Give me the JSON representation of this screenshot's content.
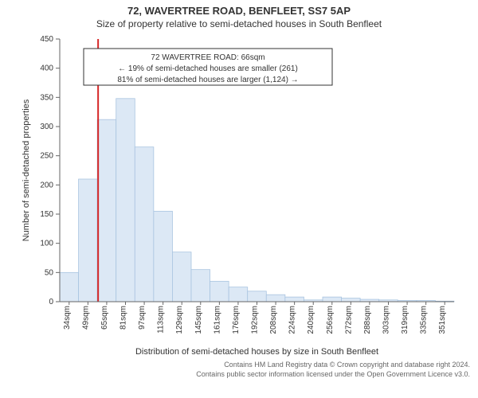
{
  "title_line1": "72, WAVERTREE ROAD, BENFLEET, SS7 5AP",
  "title_line2": "Size of property relative to semi-detached houses in South Benfleet",
  "chart": {
    "type": "histogram",
    "y_label": "Number of semi-detached properties",
    "x_label": "Distribution of semi-detached houses by size in South Benfleet",
    "x_tick_labels": [
      "34sqm",
      "49sqm",
      "65sqm",
      "81sqm",
      "97sqm",
      "113sqm",
      "129sqm",
      "145sqm",
      "161sqm",
      "176sqm",
      "192sqm",
      "208sqm",
      "224sqm",
      "240sqm",
      "256sqm",
      "272sqm",
      "288sqm",
      "303sqm",
      "319sqm",
      "335sqm",
      "351sqm"
    ],
    "y_ticks": [
      0,
      50,
      100,
      150,
      200,
      250,
      300,
      350,
      400,
      450
    ],
    "ylim": [
      0,
      450
    ],
    "values": [
      50,
      210,
      312,
      348,
      265,
      155,
      85,
      55,
      35,
      25,
      18,
      12,
      8,
      3,
      8,
      6,
      4,
      3,
      2,
      2,
      1
    ],
    "bar_fill": "#dce8f5",
    "bar_stroke": "#a9c4e0",
    "axis_color": "#666666",
    "grid_color": "#666666",
    "marker_line_color": "#d62728",
    "marker_bin_index": 2,
    "background_color": "#ffffff",
    "tick_fontsize": 10,
    "label_fontsize": 11,
    "annotation": {
      "line1": "72 WAVERTREE ROAD: 66sqm",
      "line2": "← 19% of semi-detached houses are smaller (261)",
      "line3": "81% of semi-detached houses are larger (1,124) →",
      "box_fill": "#ffffff",
      "box_stroke": "#333333",
      "text_color": "#333333",
      "fontsize": 10
    }
  },
  "footer_line1": "Contains HM Land Registry data © Crown copyright and database right 2024.",
  "footer_line2": "Contains public sector information licensed under the Open Government Licence v3.0."
}
